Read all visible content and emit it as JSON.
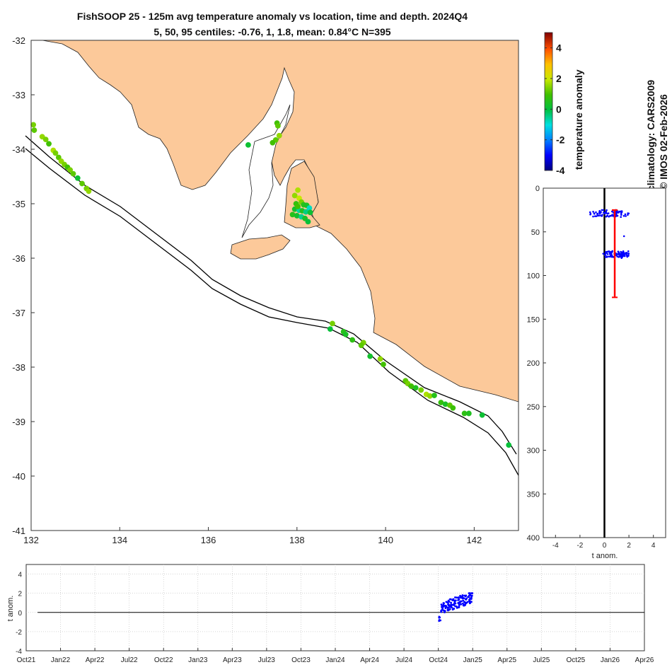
{
  "header": {
    "title_line1": "FishSOOP 25 - 125m avg temperature anomaly vs location, time and depth. 2024Q4",
    "title_line2": "5, 50, 95 centiles: -0.76, 1, 1.8, mean: 0.84°C N=395"
  },
  "side_text": {
    "climatology": "climatology: CARS2009",
    "credit": "© IMOS 02-Feb-2026"
  },
  "colorbar": {
    "label": "temperature anomaly",
    "ticks": [
      4,
      2,
      0,
      -2,
      -4
    ],
    "range": [
      -4,
      5
    ]
  },
  "colors": {
    "land": "#fcc99a",
    "profile_points": "#0000ff",
    "mean_bar": "#ff0000",
    "zero_line": "#000000"
  },
  "chart_data": [
    {
      "type": "scatter",
      "name": "map",
      "xlim": [
        132,
        143
      ],
      "ylim": [
        -41,
        -32
      ],
      "xticks": [
        132,
        134,
        136,
        138,
        140,
        142
      ],
      "yticks": [
        -32,
        -33,
        -34,
        -35,
        -36,
        -37,
        -38,
        -39,
        -40,
        -41
      ],
      "points": [
        {
          "lon": 132.05,
          "lat": -33.55,
          "anom": 1.2
        },
        {
          "lon": 132.07,
          "lat": -33.65,
          "anom": 1.1
        },
        {
          "lon": 132.25,
          "lat": -33.77,
          "anom": 1.3
        },
        {
          "lon": 132.33,
          "lat": -33.82,
          "anom": 1.2
        },
        {
          "lon": 132.4,
          "lat": -33.9,
          "anom": 1.0
        },
        {
          "lon": 132.5,
          "lat": -34.02,
          "anom": 1.4
        },
        {
          "lon": 132.55,
          "lat": -34.07,
          "anom": 1.2
        },
        {
          "lon": 132.62,
          "lat": -34.15,
          "anom": 1.1
        },
        {
          "lon": 132.68,
          "lat": -34.22,
          "anom": 1.3
        },
        {
          "lon": 132.75,
          "lat": -34.28,
          "anom": 1.2
        },
        {
          "lon": 132.82,
          "lat": -34.33,
          "anom": 1.0
        },
        {
          "lon": 132.88,
          "lat": -34.38,
          "anom": 1.2
        },
        {
          "lon": 132.95,
          "lat": -34.45,
          "anom": 1.1
        },
        {
          "lon": 133.05,
          "lat": -34.53,
          "anom": 0.2
        },
        {
          "lon": 133.15,
          "lat": -34.63,
          "anom": 1.1
        },
        {
          "lon": 133.25,
          "lat": -34.72,
          "anom": 1.2
        },
        {
          "lon": 133.3,
          "lat": -34.77,
          "anom": 1.3
        },
        {
          "lon": 137.55,
          "lat": -33.52,
          "anom": 1.0
        },
        {
          "lon": 137.57,
          "lat": -33.57,
          "anom": 1.1
        },
        {
          "lon": 137.6,
          "lat": -33.75,
          "anom": 1.3
        },
        {
          "lon": 137.52,
          "lat": -33.83,
          "anom": 1.1
        },
        {
          "lon": 137.45,
          "lat": -33.88,
          "anom": 1.0
        },
        {
          "lon": 136.9,
          "lat": -33.92,
          "anom": 0.2
        },
        {
          "lon": 138.02,
          "lat": -34.75,
          "anom": 1.4
        },
        {
          "lon": 137.95,
          "lat": -34.85,
          "anom": 1.3
        },
        {
          "lon": 138.05,
          "lat": -34.9,
          "anom": 1.5
        },
        {
          "lon": 138.1,
          "lat": -34.97,
          "anom": 1.2
        },
        {
          "lon": 137.98,
          "lat": -35.0,
          "anom": 0.8
        },
        {
          "lon": 138.15,
          "lat": -35.02,
          "anom": 0.6
        },
        {
          "lon": 138.22,
          "lat": -35.03,
          "anom": 0.4
        },
        {
          "lon": 138.28,
          "lat": -35.08,
          "anom": -0.8
        },
        {
          "lon": 137.95,
          "lat": -35.1,
          "anom": 0.3
        },
        {
          "lon": 138.05,
          "lat": -35.12,
          "anom": -0.6
        },
        {
          "lon": 138.12,
          "lat": -35.13,
          "anom": 0.5
        },
        {
          "lon": 138.2,
          "lat": -35.15,
          "anom": -0.4
        },
        {
          "lon": 138.3,
          "lat": -35.16,
          "anom": 0.2
        },
        {
          "lon": 137.9,
          "lat": -35.2,
          "anom": 0.6
        },
        {
          "lon": 138.0,
          "lat": -35.22,
          "anom": 0.3
        },
        {
          "lon": 138.1,
          "lat": -35.24,
          "anom": -0.5
        },
        {
          "lon": 138.18,
          "lat": -35.27,
          "anom": 0.4
        },
        {
          "lon": 138.25,
          "lat": -35.33,
          "anom": 0.1
        },
        {
          "lon": 138.02,
          "lat": -35.05,
          "anom": 1.0
        },
        {
          "lon": 138.8,
          "lat": -37.2,
          "anom": 1.2
        },
        {
          "lon": 138.75,
          "lat": -37.3,
          "anom": 0.1
        },
        {
          "lon": 139.05,
          "lat": -37.35,
          "anom": 0.6
        },
        {
          "lon": 139.1,
          "lat": -37.4,
          "anom": 0.4
        },
        {
          "lon": 139.25,
          "lat": -37.5,
          "anom": 0.7
        },
        {
          "lon": 139.5,
          "lat": -37.55,
          "anom": 1.2
        },
        {
          "lon": 139.45,
          "lat": -37.6,
          "anom": 1.1
        },
        {
          "lon": 139.65,
          "lat": -37.8,
          "anom": 0.3
        },
        {
          "lon": 139.88,
          "lat": -37.85,
          "anom": 1.3
        },
        {
          "lon": 139.95,
          "lat": -37.95,
          "anom": 1.0
        },
        {
          "lon": 140.45,
          "lat": -38.25,
          "anom": 1.1
        },
        {
          "lon": 140.5,
          "lat": -38.3,
          "anom": 1.2
        },
        {
          "lon": 140.58,
          "lat": -38.35,
          "anom": 1.0
        },
        {
          "lon": 140.68,
          "lat": -38.38,
          "anom": 0.5
        },
        {
          "lon": 140.8,
          "lat": -38.42,
          "anom": 1.2
        },
        {
          "lon": 140.92,
          "lat": -38.5,
          "anom": 1.4
        },
        {
          "lon": 141.0,
          "lat": -38.53,
          "anom": 1.3
        },
        {
          "lon": 141.1,
          "lat": -38.52,
          "anom": 0.6
        },
        {
          "lon": 141.25,
          "lat": -38.65,
          "anom": 0.8
        },
        {
          "lon": 141.35,
          "lat": -38.68,
          "anom": 0.4
        },
        {
          "lon": 141.45,
          "lat": -38.7,
          "anom": 1.1
        },
        {
          "lon": 141.52,
          "lat": -38.75,
          "anom": 0.9
        },
        {
          "lon": 141.78,
          "lat": -38.85,
          "anom": 0.7
        },
        {
          "lon": 141.88,
          "lat": -38.85,
          "anom": 0.5
        },
        {
          "lon": 142.18,
          "lat": -38.88,
          "anom": 0.2
        },
        {
          "lon": 142.78,
          "lat": -39.43,
          "anom": 0.1
        }
      ]
    },
    {
      "type": "scatter",
      "name": "depth-profile",
      "xlabel": "t anom.",
      "xlim": [
        -5,
        5
      ],
      "ylim": [
        0,
        400
      ],
      "xticks": [
        -4,
        -2,
        0,
        2,
        4
      ],
      "yticks": [
        0,
        50,
        100,
        150,
        200,
        250,
        300,
        350,
        400
      ],
      "clusters": [
        {
          "depth_min": 25,
          "depth_max": 33,
          "anom_min": -1.2,
          "anom_max": 2.0,
          "count": 80
        },
        {
          "depth_min": 72,
          "depth_max": 79,
          "anom_min": 0.0,
          "anom_max": 2.0,
          "count": 90
        }
      ],
      "outliers": [
        {
          "x": 1.6,
          "y": 55
        },
        {
          "x": -0.1,
          "y": 75
        },
        {
          "x": 1.4,
          "y": 80
        }
      ],
      "mean_bar": {
        "x": 0.84,
        "ymin": 25,
        "ymax": 125
      }
    },
    {
      "type": "scatter",
      "name": "time-series",
      "ylabel": "t anom.",
      "xlim": [
        "Oct21",
        "Apr26"
      ],
      "ylim": [
        -4,
        5
      ],
      "yticks": [
        -4,
        -2,
        0,
        2,
        4
      ],
      "xticks": [
        "Oct21",
        "Jan22",
        "Apr22",
        "Jul22",
        "Oct22",
        "Jan23",
        "Apr23",
        "Jul23",
        "Oct23",
        "Jan24",
        "Apr24",
        "Jul24",
        "Oct24",
        "Jan25",
        "Apr25",
        "Jul25",
        "Oct25",
        "Jan26",
        "Apr26"
      ],
      "series_window": {
        "start_month": 36.05,
        "end_month": 39.0,
        "anom_min": -1.0,
        "anom_max": 2.0,
        "count": 150
      }
    }
  ]
}
